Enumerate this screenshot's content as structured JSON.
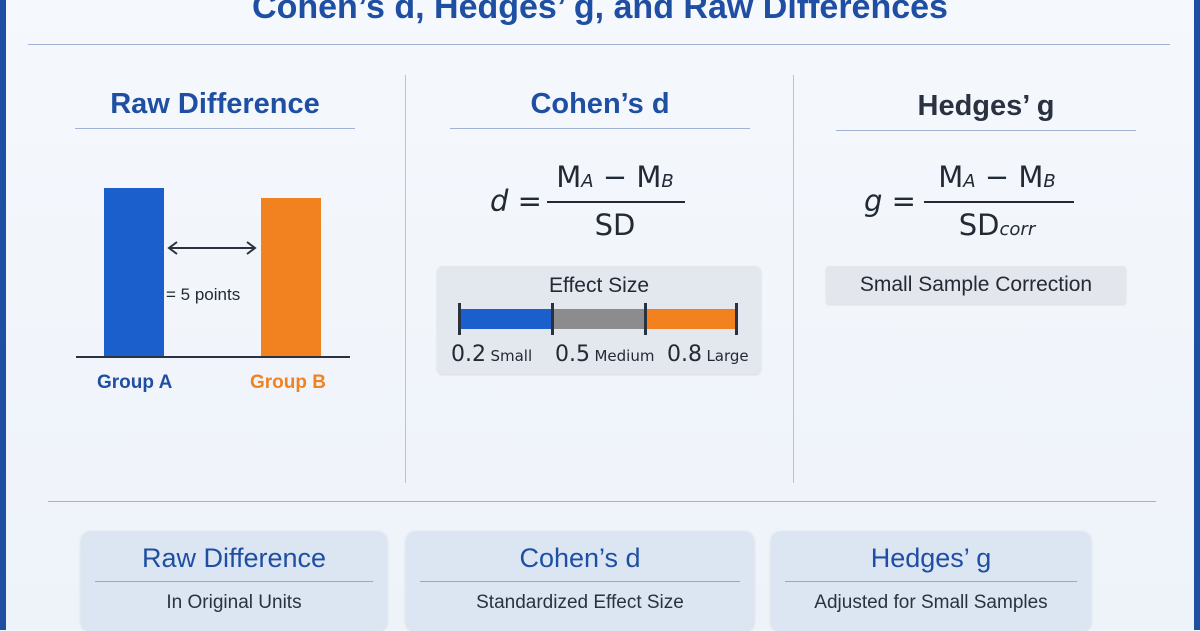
{
  "title": "Cohen’s d, Hedges’ g, and Raw Differences",
  "colors": {
    "primary_blue": "#1f4fa3",
    "bar_blue": "#1a5fcc",
    "bar_orange": "#f28120",
    "effect_gray": "#8c8c8c"
  },
  "raw": {
    "heading": "Raw Difference",
    "diff_label": "= 5 points",
    "group_a": "Group A",
    "group_b": "Group B"
  },
  "cohen": {
    "heading": "Cohen’s d",
    "lhs": "d =",
    "num_m": "M",
    "num_a": "A",
    "num_minus": " − M",
    "num_b": "B",
    "den": "SD",
    "effect_title": "Effect Size",
    "effects": [
      {
        "num": "0.2",
        "word": "Small"
      },
      {
        "num": "0.5",
        "word": "Medium"
      },
      {
        "num": "0.8",
        "word": "Large"
      }
    ]
  },
  "hedges": {
    "heading": "Hedges’ g",
    "lhs": "g =",
    "num_m": "M",
    "num_a": "A",
    "num_minus": " − M",
    "num_b": "B",
    "den": "SD",
    "den_sub": "corr",
    "correction": "Small Sample Correction"
  },
  "cards": [
    {
      "title": "Raw Difference",
      "subtitle": "In Original Units"
    },
    {
      "title": "Cohen’s d",
      "subtitle": "Standardized Effect Size"
    },
    {
      "title": "Hedges’ g",
      "subtitle": "Adjusted for Small Samples"
    }
  ]
}
